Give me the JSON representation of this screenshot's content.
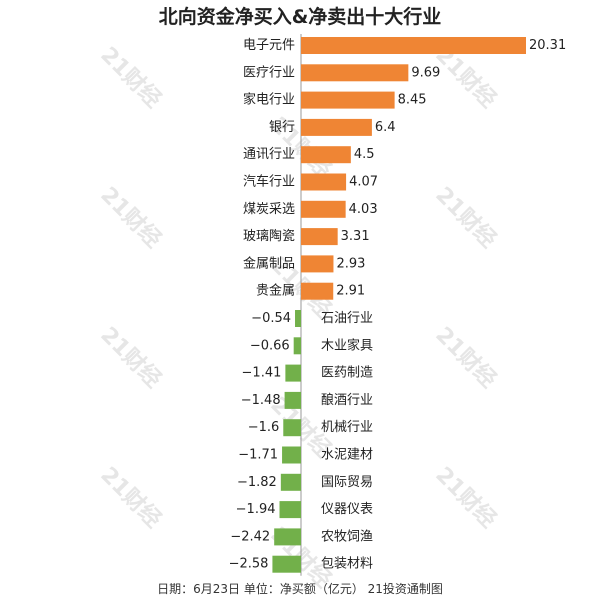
{
  "title": "北向资金净买入&净卖出十大行业",
  "footer": "日期：6月23日 单位：净买额（亿元） 21投资通制图",
  "watermark": "21财经",
  "colors": {
    "positive": "#ef8534",
    "negative": "#72b04a",
    "axis": "#9a9a9a",
    "text": "#222222"
  },
  "chart_data": {
    "type": "bar",
    "orientation": "horizontal",
    "categories": [
      "电子元件",
      "医疗行业",
      "家电行业",
      "银行",
      "通讯行业",
      "汽车行业",
      "煤炭采选",
      "玻璃陶瓷",
      "金属制品",
      "贵金属",
      "石油行业",
      "木业家具",
      "医药制造",
      "酿酒行业",
      "机械行业",
      "水泥建材",
      "国际贸易",
      "仪器仪表",
      "农牧饲渔",
      "包装材料"
    ],
    "values": [
      20.31,
      9.69,
      8.45,
      6.4,
      4.5,
      4.07,
      4.03,
      3.31,
      2.93,
      2.91,
      -0.54,
      -0.66,
      -1.41,
      -1.48,
      -1.6,
      -1.71,
      -1.82,
      -1.94,
      -2.42,
      -2.58
    ],
    "value_labels": [
      "20.31",
      "9.69",
      "8.45",
      "6.4",
      "4.5",
      "4.07",
      "4.03",
      "3.31",
      "2.93",
      "2.91",
      "−0.54",
      "−0.66",
      "−1.41",
      "−1.48",
      "−1.6",
      "−1.71",
      "−1.82",
      "−1.94",
      "−2.42",
      "−2.58"
    ],
    "title": "北向资金净买入&净卖出十大行业",
    "xlabel": "",
    "ylabel": "",
    "xlim": [
      -2.58,
      20.31
    ],
    "grid": false,
    "legend": "none"
  }
}
